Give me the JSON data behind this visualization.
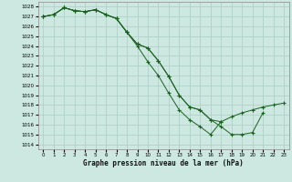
{
  "title": "Graphe pression niveau de la mer (hPa)",
  "bg_color": "#cce8e0",
  "grid_color": "#aaccc4",
  "line_color": "#1a6020",
  "marker_color": "#1a6020",
  "xlim": [
    -0.5,
    23.5
  ],
  "ylim": [
    1013.5,
    1028.5
  ],
  "yticks": [
    1014,
    1015,
    1016,
    1017,
    1018,
    1019,
    1020,
    1021,
    1022,
    1023,
    1024,
    1025,
    1026,
    1027,
    1028
  ],
  "xticks": [
    0,
    1,
    2,
    3,
    4,
    5,
    6,
    7,
    8,
    9,
    10,
    11,
    12,
    13,
    14,
    15,
    16,
    17,
    18,
    19,
    20,
    21,
    22,
    23
  ],
  "series1_x": [
    0,
    1,
    2,
    3,
    4,
    5,
    6,
    7,
    8,
    9,
    10,
    11,
    12,
    13,
    14,
    15,
    16,
    17
  ],
  "series1_y": [
    1027.0,
    1027.2,
    1027.9,
    1027.6,
    1027.5,
    1027.7,
    1027.2,
    1026.8,
    1025.4,
    1024.0,
    1022.4,
    1021.0,
    1019.2,
    1017.5,
    1016.5,
    1015.8,
    1015.0,
    1016.3
  ],
  "series2_x": [
    0,
    1,
    2,
    3,
    4,
    5,
    6,
    7,
    8,
    9,
    10,
    11,
    12,
    13,
    14,
    15,
    16,
    17,
    18,
    19,
    20,
    21
  ],
  "series2_y": [
    1027.0,
    1027.2,
    1027.9,
    1027.6,
    1027.5,
    1027.7,
    1027.2,
    1026.8,
    1025.4,
    1024.2,
    1023.8,
    1022.5,
    1020.9,
    1019.0,
    1017.8,
    1017.5,
    1016.5,
    1015.8,
    1015.0,
    1015.0,
    1015.2,
    1017.2
  ],
  "series3_x": [
    0,
    1,
    2,
    3,
    4,
    5,
    6,
    7,
    8,
    9,
    10,
    11,
    12,
    13,
    14,
    15,
    16,
    17,
    18,
    19,
    20,
    21,
    22,
    23
  ],
  "series3_y": [
    1027.0,
    1027.2,
    1027.9,
    1027.6,
    1027.5,
    1027.7,
    1027.2,
    1026.8,
    1025.4,
    1024.2,
    1023.8,
    1022.5,
    1020.9,
    1019.0,
    1017.8,
    1017.5,
    1016.5,
    1016.3,
    1016.8,
    1017.2,
    1017.5,
    1017.8,
    1018.0,
    1018.2
  ]
}
